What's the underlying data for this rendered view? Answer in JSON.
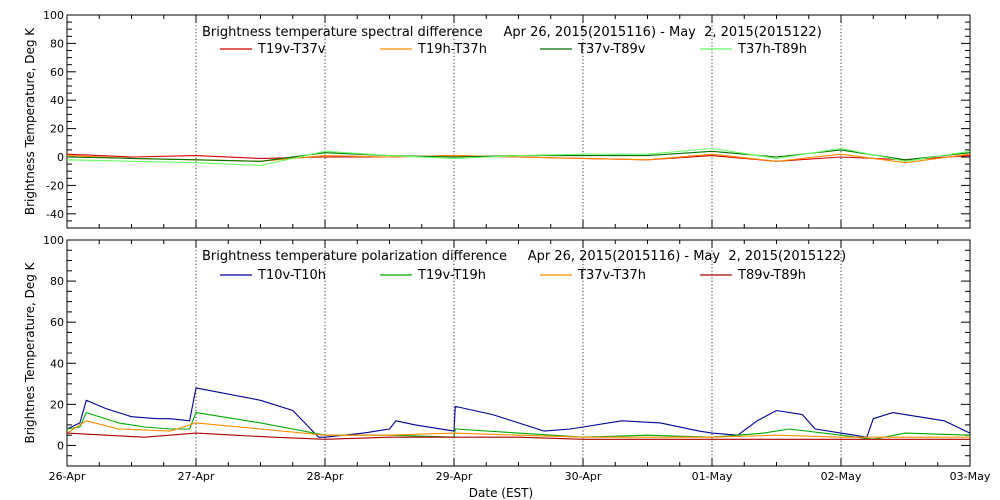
{
  "chart_data": [
    {
      "type": "line",
      "title": "Brightness temperature spectral difference     Apr 26, 2015(2015116) - May  2, 2015(2015122)",
      "ylabel": "Brightness Temperature, Deg K",
      "xlabel": "",
      "x_tick_labels": [
        "26-Apr",
        "27-Apr",
        "28-Apr",
        "29-Apr",
        "30-Apr",
        "01-May",
        "02-May",
        "03-May"
      ],
      "xlim": [
        0,
        7
      ],
      "x_unit": "days since 26-Apr",
      "ylim": [
        -50,
        100
      ],
      "y_ticks": [
        -40,
        -20,
        0,
        20,
        40,
        60,
        80,
        100
      ],
      "y_tick_labels": [
        "-40",
        "-20",
        "0",
        "20",
        "40",
        "60",
        "80",
        "100"
      ],
      "grid": "vertical dotted at each day",
      "legend": "top, two-column inline",
      "series": [
        {
          "name": "T19v-T37v",
          "color": "#d40000",
          "x": [
            0,
            0.5,
            1,
            1.5,
            2,
            2.5,
            3,
            3.5,
            4,
            4.5,
            5,
            5.5,
            6,
            6.5,
            7
          ],
          "values": [
            2,
            0,
            1,
            -1,
            0,
            0,
            1,
            0,
            -1,
            -2,
            1,
            -3,
            0,
            -2,
            1
          ]
        },
        {
          "name": "T19h-T37h",
          "color": "#ff8c00",
          "x": [
            0,
            0.5,
            1,
            1.5,
            2,
            2.5,
            3,
            3.5,
            4,
            4.5,
            5,
            5.5,
            6,
            6.5,
            7
          ],
          "values": [
            1,
            -1,
            -2,
            -3,
            1,
            0,
            1,
            0,
            -1,
            -2,
            2,
            -3,
            2,
            -4,
            2
          ]
        },
        {
          "name": "T37v-T89v",
          "color": "#007000",
          "x": [
            0,
            0.5,
            1,
            1.5,
            2,
            2.5,
            3,
            3.5,
            4,
            4.5,
            5,
            5.5,
            6,
            6.5,
            7
          ],
          "values": [
            0,
            -1,
            -2,
            -3,
            3,
            1,
            0,
            1,
            1,
            1,
            4,
            0,
            5,
            -2,
            3
          ]
        },
        {
          "name": "T37h-T89h",
          "color": "#66ff66",
          "x": [
            0,
            0.5,
            1,
            1.5,
            2,
            2.5,
            3,
            3.5,
            4,
            4.5,
            5,
            5.5,
            6,
            6.5,
            7
          ],
          "values": [
            -2,
            -3,
            -4,
            -6,
            4,
            1,
            -1,
            1,
            2,
            2,
            6,
            -1,
            6,
            -3,
            4
          ]
        }
      ]
    },
    {
      "type": "line",
      "title": "Brightness temperature polarization difference     Apr 26, 2015(2015116) - May  2, 2015(2015122)",
      "ylabel": "Brightnes Temperature, Deg K",
      "xlabel": "Date (EST)",
      "x_tick_labels": [
        "26-Apr",
        "27-Apr",
        "28-Apr",
        "29-Apr",
        "30-Apr",
        "01-May",
        "02-May",
        "03-May"
      ],
      "xlim": [
        0,
        7
      ],
      "x_unit": "days since 26-Apr",
      "ylim": [
        -10,
        100
      ],
      "y_ticks": [
        0,
        20,
        40,
        60,
        80,
        100
      ],
      "y_tick_labels": [
        "0",
        "20",
        "40",
        "60",
        "80",
        "100"
      ],
      "grid": "vertical dotted at each day",
      "legend": "top, two-column inline",
      "series": [
        {
          "name": "T10v-T10h",
          "color": "#000099",
          "x": [
            0,
            0.1,
            0.15,
            0.3,
            0.5,
            0.7,
            0.8,
            0.95,
            1.0,
            1.5,
            1.75,
            1.95,
            2.0,
            2.3,
            2.5,
            2.55,
            2.7,
            3.0,
            3.01,
            3.3,
            3.5,
            3.7,
            3.9,
            4.0,
            4.3,
            4.6,
            4.9,
            5.0,
            5.2,
            5.35,
            5.5,
            5.7,
            5.8,
            6.0,
            6.2,
            6.25,
            6.4,
            6.6,
            6.8,
            7.0
          ],
          "values": [
            8,
            11,
            22,
            18,
            14,
            13,
            13,
            12,
            28,
            22,
            17,
            4,
            4,
            6,
            8,
            12,
            10,
            7,
            19,
            15,
            11,
            7,
            8,
            9,
            12,
            11,
            7,
            6,
            5,
            12,
            17,
            15,
            8,
            6,
            4,
            13,
            16,
            14,
            12,
            6
          ]
        },
        {
          "name": "T19v-T19h",
          "color": "#00aa00",
          "x": [
            0,
            0.1,
            0.15,
            0.4,
            0.6,
            0.8,
            0.95,
            1.0,
            1.5,
            1.75,
            2.0,
            2.5,
            3.0,
            3.01,
            3.5,
            4.0,
            4.5,
            5.0,
            5.4,
            5.6,
            6.0,
            6.25,
            6.5,
            7.0
          ],
          "values": [
            8,
            9,
            16,
            11,
            9,
            8,
            8,
            16,
            11,
            8,
            5,
            5,
            4,
            8,
            6,
            4,
            5,
            4,
            6,
            8,
            5,
            3,
            6,
            5
          ]
        },
        {
          "name": "T37v-T37h",
          "color": "#ff8c00",
          "x": [
            0,
            0.15,
            0.4,
            0.8,
            1.0,
            1.5,
            2.0,
            2.5,
            3.0,
            3.5,
            4.0,
            4.5,
            5.0,
            5.5,
            6.0,
            6.5,
            7.0
          ],
          "values": [
            6,
            12,
            8,
            7,
            11,
            8,
            5,
            5,
            6,
            5,
            4,
            4,
            4,
            5,
            4,
            4,
            4
          ]
        },
        {
          "name": "T89v-T89h",
          "color": "#aa0000",
          "x": [
            0,
            0.3,
            0.6,
            1.0,
            1.3,
            1.6,
            2.0,
            2.5,
            3.0,
            3.5,
            4.0,
            4.5,
            5.0,
            5.5,
            6.0,
            6.5,
            7.0
          ],
          "values": [
            6,
            5,
            4,
            6,
            5,
            4,
            3,
            4,
            4,
            4,
            3,
            3,
            3,
            3,
            3,
            3,
            3
          ]
        }
      ]
    }
  ]
}
